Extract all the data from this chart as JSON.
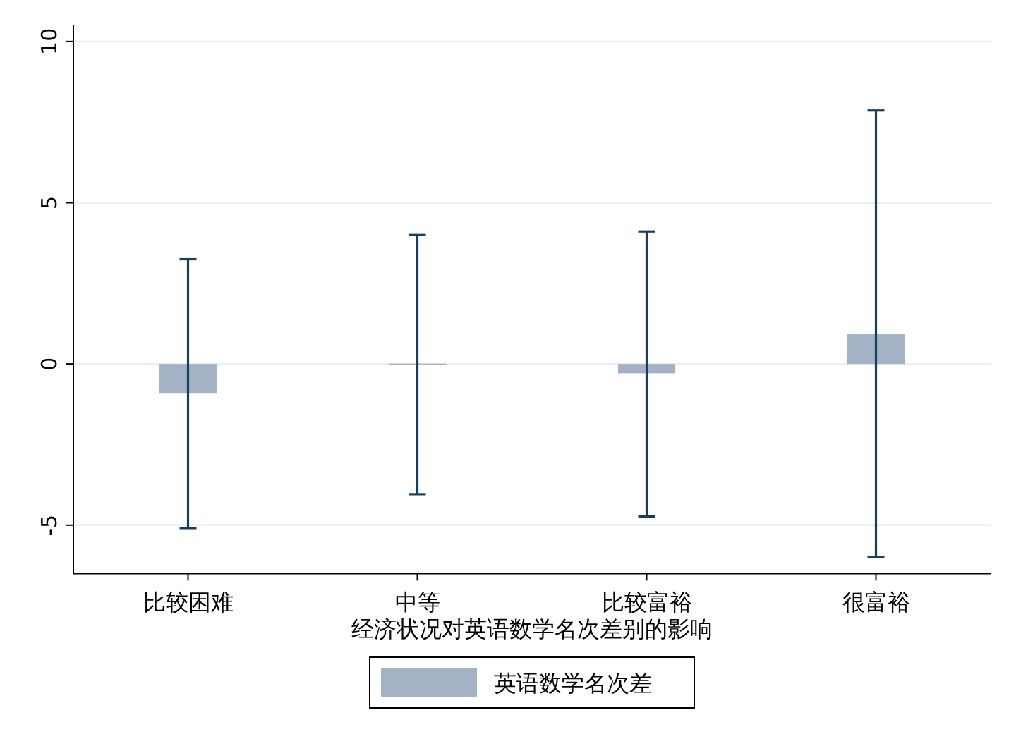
{
  "chart_data": {
    "type": "bar",
    "xlabel": "经济状况对英语数学名次差别的影响",
    "categories": [
      "比较困难",
      "中等",
      "比较富裕",
      "很富裕"
    ],
    "series": [
      {
        "name": "英语数学名次差",
        "color": "#a3b3c5",
        "values": [
          -0.92,
          0.01,
          -0.29,
          0.92
        ],
        "errors": [
          [
            -5.09,
            3.25
          ],
          [
            -4.04,
            4.0
          ],
          [
            -4.73,
            4.11
          ],
          [
            -5.98,
            7.86
          ]
        ]
      }
    ],
    "ylim": [
      -6.5,
      10.5
    ],
    "yticks": [
      -5,
      0,
      5,
      10
    ],
    "grid": "y",
    "legend": "bottom"
  }
}
